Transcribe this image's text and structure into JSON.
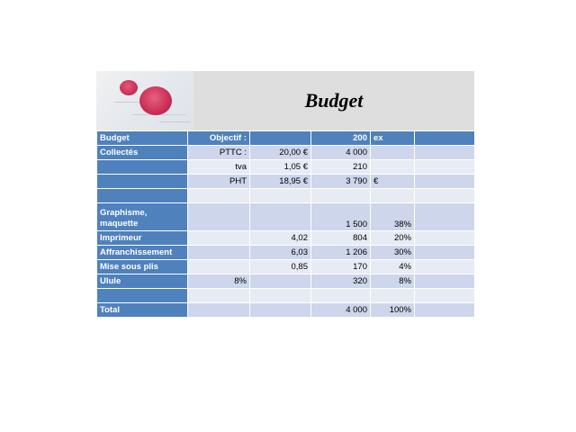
{
  "title": "Budget",
  "thumbnail": "red-seal-image",
  "columns": [
    "Budget",
    "Objectif :",
    "",
    "200",
    "ex",
    ""
  ],
  "rows": [
    [
      "Collectés",
      "PTTC :",
      "20,00 €",
      "4 000",
      "",
      ""
    ],
    [
      "",
      "tva",
      "1,05 €",
      "210",
      "",
      ""
    ],
    [
      "",
      "PHT",
      "18,95 €",
      "3 790",
      "€",
      ""
    ],
    [
      "",
      "",
      "",
      "",
      "",
      ""
    ],
    [
      "Graphisme, maquette",
      "",
      "",
      "1 500",
      "38%",
      ""
    ],
    [
      "Imprimeur",
      "",
      "4,02",
      "804",
      "20%",
      ""
    ],
    [
      "Affranchissement",
      "",
      "6,03",
      "1 206",
      "30%",
      ""
    ],
    [
      "Mise sous plis",
      "",
      "0,85",
      "170",
      "4%",
      ""
    ],
    [
      "Ulule",
      "8%",
      "",
      "320",
      "8%",
      ""
    ],
    [
      "",
      "",
      "",
      "",
      "",
      ""
    ],
    [
      "Total",
      "",
      "",
      "4 000",
      "100%",
      ""
    ]
  ]
}
